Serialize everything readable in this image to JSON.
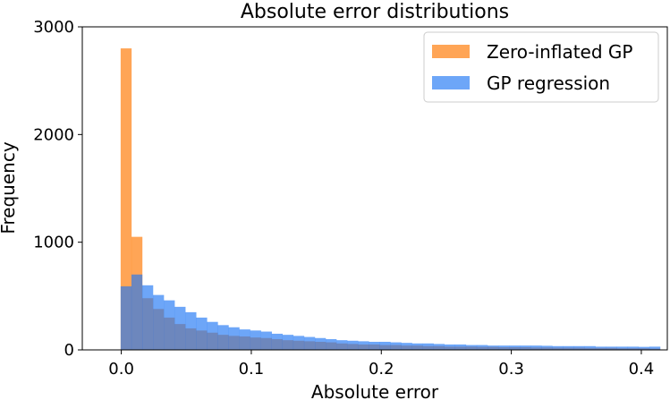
{
  "chart_data": {
    "type": "bar",
    "title": "Absolute error distributions",
    "xlabel": "Absolute error",
    "ylabel": "Frequency",
    "xlim": [
      -0.03,
      0.42
    ],
    "ylim": [
      0,
      3000
    ],
    "xticks": [
      0.0,
      0.1,
      0.2,
      0.3,
      0.4
    ],
    "xtick_labels": [
      "0.0",
      "0.1",
      "0.2",
      "0.3",
      "0.4"
    ],
    "yticks": [
      0,
      1000,
      2000,
      3000
    ],
    "ytick_labels": [
      "0",
      "1000",
      "2000",
      "3000"
    ],
    "bin_width": 0.0083,
    "bin_start": -0.0005,
    "grid": false,
    "legend_position": "top-right",
    "series": [
      {
        "name": "Zero-inflated GP",
        "color": "#ff7f0e",
        "alpha": 0.7,
        "values": [
          2800,
          1050,
          480,
          380,
          300,
          240,
          200,
          180,
          160,
          140,
          130,
          125,
          115,
          110,
          100,
          90,
          85,
          80,
          75,
          70,
          60,
          55,
          50,
          50,
          45,
          45,
          40,
          40,
          35,
          35,
          30,
          30,
          30,
          28,
          28,
          25,
          25,
          25,
          22,
          22,
          20,
          20,
          20,
          18,
          18,
          18,
          15,
          15,
          15,
          12
        ]
      },
      {
        "name": "GP regression",
        "color": "#1f77f4",
        "alpha": 0.65,
        "values": [
          590,
          700,
          600,
          510,
          460,
          400,
          350,
          300,
          260,
          230,
          210,
          190,
          180,
          170,
          150,
          140,
          130,
          120,
          110,
          100,
          90,
          85,
          80,
          75,
          75,
          70,
          65,
          60,
          60,
          55,
          50,
          50,
          45,
          45,
          40,
          40,
          40,
          40,
          40,
          38,
          35,
          35,
          35,
          35,
          30,
          30,
          30,
          30,
          28,
          30
        ]
      }
    ]
  }
}
